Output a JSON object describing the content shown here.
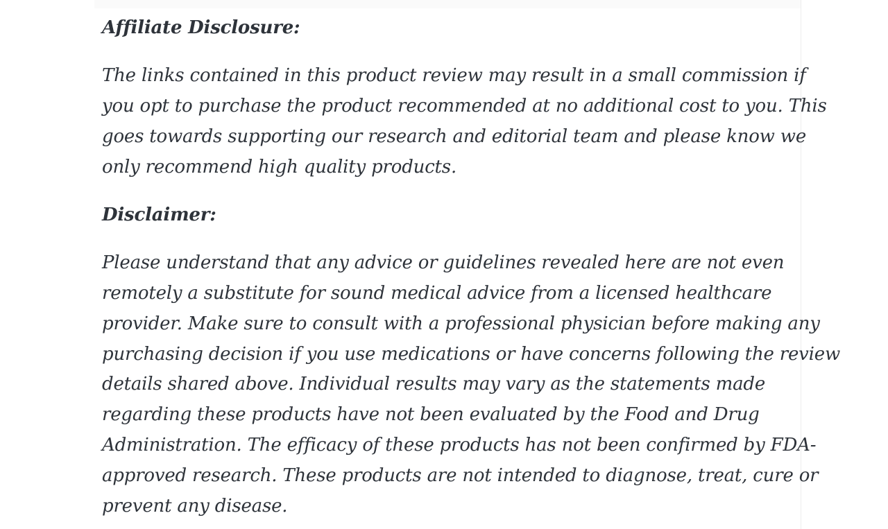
{
  "page": {
    "background": "#ffffff",
    "top_strip_color": "#fafafa",
    "divider_color": "#ededed"
  },
  "article": {
    "text_color": "#2e333a",
    "sections": [
      {
        "heading": "Affiliate Disclosure:",
        "lines": [
          "The links contained in this product review may result in a small commission if",
          "you opt to purchase the product recommended at no additional cost to you. This",
          "goes towards supporting our research and editorial team and please know we",
          "only recommend high quality products."
        ]
      },
      {
        "heading": "Disclaimer:",
        "lines": [
          "Please understand that any advice or guidelines revealed here are not even",
          "remotely a substitute for sound medical advice from a licensed healthcare",
          "provider. Make sure to consult with a professional physician before making any",
          "purchasing decision if you use medications or have concerns following the review",
          "details shared above. Individual results may vary as the statements made",
          "regarding these products have not been evaluated by the Food and Drug",
          "Administration. The efficacy of these products has not been confirmed by FDA-",
          "approved research. These products are not intended to diagnose, treat, cure or",
          "prevent any disease."
        ]
      }
    ]
  }
}
